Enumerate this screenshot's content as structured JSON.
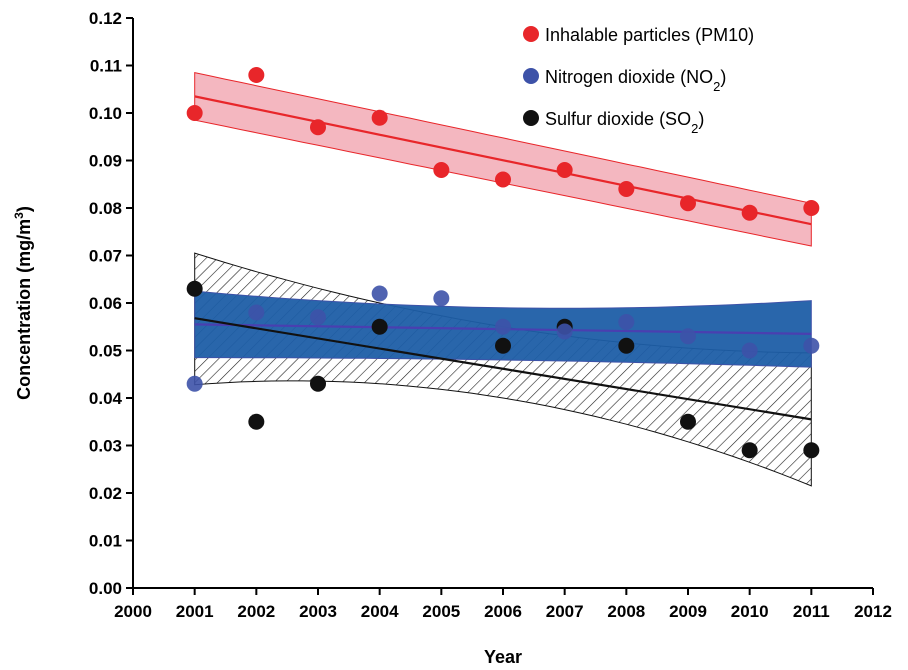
{
  "chart_data": {
    "type": "scatter",
    "xlabel": "Year",
    "ylabel": "Concentration (mg/m³)",
    "ylabel_parts": {
      "main": "Concentration (mg/m",
      "sup": "3",
      "end": ")"
    },
    "xlim": [
      2000,
      2012
    ],
    "ylim": [
      0,
      0.12
    ],
    "xticks": [
      "2000",
      "2001",
      "2002",
      "2003",
      "2004",
      "2005",
      "2006",
      "2007",
      "2008",
      "2009",
      "2010",
      "2011",
      "2012"
    ],
    "yticks": [
      "0.00",
      "0.01",
      "0.02",
      "0.03",
      "0.04",
      "0.05",
      "0.06",
      "0.07",
      "0.08",
      "0.09",
      "0.10",
      "0.11",
      "0.12"
    ],
    "grid": false,
    "legend_position": "top-right",
    "x": [
      2001,
      2002,
      2003,
      2004,
      2005,
      2006,
      2007,
      2008,
      2009,
      2010,
      2011
    ],
    "series": [
      {
        "key": "pm10",
        "name": "Inhalable particles (PM10)",
        "legend_parts": {
          "main": "Inhalable particles (PM10)",
          "sub": "",
          "end": ""
        },
        "color": "#e8262a",
        "band_fill": "#f2aab5",
        "band_style": "solid",
        "values": [
          0.1,
          0.108,
          0.097,
          0.099,
          0.088,
          0.086,
          0.088,
          0.084,
          0.081,
          0.079,
          0.08
        ],
        "fit": [
          0.1035,
          0.0766
        ],
        "band_upper": [
          0.1085,
          0.081
        ],
        "band_lower": [
          0.0985,
          0.072
        ]
      },
      {
        "key": "no2",
        "name": "Nitrogen dioxide (NO2)",
        "legend_parts": {
          "main": "Nitrogen dioxide (NO",
          "sub": "2",
          "end": ")"
        },
        "color": "#3d52a8",
        "band_fill": "#1d5ea6",
        "band_style": "solid",
        "values": [
          0.043,
          0.058,
          0.057,
          0.062,
          0.061,
          0.055,
          0.054,
          0.056,
          0.053,
          0.05,
          0.051
        ],
        "fit": [
          0.0555,
          0.0535
        ],
        "band_upper": [
          0.0625,
          0.059,
          0.0605
        ],
        "band_lower": [
          0.0485,
          0.048,
          0.0465
        ]
      },
      {
        "key": "so2",
        "name": "Sulfur dioxide (SO2)",
        "legend_parts": {
          "main": "Sulfur dioxide (SO",
          "sub": "2",
          "end": ")"
        },
        "color": "#111111",
        "band_fill": "#ffffff",
        "band_style": "hatched",
        "values": [
          0.063,
          0.035,
          0.043,
          0.055,
          null,
          0.051,
          0.055,
          0.051,
          0.035,
          0.029,
          0.029
        ],
        "fit": [
          0.0568,
          0.0355
        ],
        "band_upper": [
          0.0705,
          0.055,
          0.0495
        ],
        "band_lower": [
          0.0428,
          0.04,
          0.0215
        ]
      }
    ]
  }
}
